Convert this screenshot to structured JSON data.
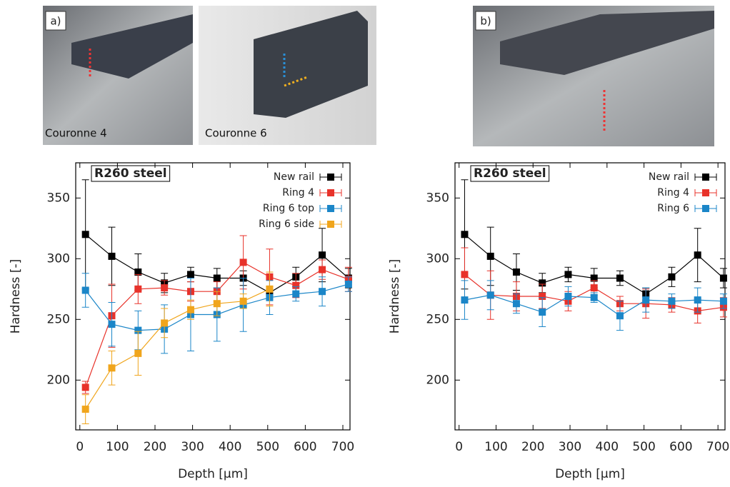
{
  "photos": {
    "label_a": "a)",
    "label_b": "b)",
    "caption_1": "Couronne 4",
    "caption_2": "Couronne 6"
  },
  "chart_data": [
    {
      "type": "line",
      "annotation": "R260 steel",
      "xlabel": "Depth [µm]",
      "ylabel": "Hardness [-]",
      "x": [
        15,
        85,
        155,
        225,
        295,
        365,
        435,
        505,
        575,
        645,
        715
      ],
      "xlim": [
        -11,
        719
      ],
      "xticks": [
        0,
        100,
        200,
        300,
        400,
        500,
        600,
        700
      ],
      "ylim": [
        159,
        379
      ],
      "yticks": [
        200,
        250,
        300,
        350
      ],
      "legend": "upper right",
      "series": [
        {
          "name": "New rail",
          "color": "#000000",
          "values": [
            320,
            302,
            289,
            280,
            287,
            284,
            284,
            272,
            285,
            303,
            284
          ],
          "errors": [
            45,
            24,
            15,
            8,
            6,
            8,
            6,
            5,
            8,
            22,
            8
          ]
        },
        {
          "name": "Ring 4",
          "color": "#e8322a",
          "values": [
            194,
            253,
            275,
            276,
            273,
            273,
            297,
            285,
            278,
            291,
            283
          ],
          "errors": [
            5,
            26,
            12,
            6,
            8,
            8,
            22,
            23,
            10,
            8,
            10
          ]
        },
        {
          "name": "Ring 6 top",
          "color": "#1b86c8",
          "values": [
            274,
            246,
            241,
            242,
            254,
            254,
            262,
            268,
            271,
            273,
            279
          ],
          "errors": [
            14,
            18,
            16,
            20,
            30,
            22,
            22,
            14,
            6,
            12,
            6
          ]
        },
        {
          "name": "Ring 6 side",
          "color": "#f0a51c",
          "values": [
            176,
            210,
            222,
            247,
            258,
            263,
            265,
            275,
            null,
            null,
            null
          ],
          "errors": [
            12,
            14,
            18,
            12,
            8,
            10,
            6,
            14,
            null,
            null,
            null
          ]
        }
      ]
    },
    {
      "type": "line",
      "annotation": "R260 steel",
      "xlabel": "Depth [µm]",
      "ylabel": "Hardness [-]",
      "x": [
        15,
        85,
        155,
        225,
        295,
        365,
        435,
        505,
        575,
        645,
        715
      ],
      "xlim": [
        -11,
        719
      ],
      "xticks": [
        0,
        100,
        200,
        300,
        400,
        500,
        600,
        700
      ],
      "ylim": [
        159,
        379
      ],
      "yticks": [
        200,
        250,
        300,
        350
      ],
      "legend": "upper right",
      "series": [
        {
          "name": "New rail",
          "color": "#000000",
          "values": [
            320,
            302,
            289,
            280,
            287,
            284,
            284,
            271,
            285,
            303,
            284
          ],
          "errors": [
            45,
            24,
            15,
            8,
            6,
            8,
            6,
            5,
            8,
            22,
            8
          ]
        },
        {
          "name": "Ring 4",
          "color": "#e8322a",
          "values": [
            287,
            270,
            269,
            269,
            265,
            276,
            263,
            263,
            262,
            257,
            260
          ],
          "errors": [
            22,
            20,
            12,
            10,
            8,
            6,
            6,
            12,
            6,
            10,
            8
          ]
        },
        {
          "name": "Ring 6",
          "color": "#1b86c8",
          "values": [
            266,
            270,
            263,
            256,
            269,
            268,
            253,
            266,
            265,
            266,
            265
          ],
          "errors": [
            16,
            12,
            8,
            12,
            8,
            4,
            12,
            10,
            6,
            10,
            6
          ]
        }
      ]
    }
  ]
}
